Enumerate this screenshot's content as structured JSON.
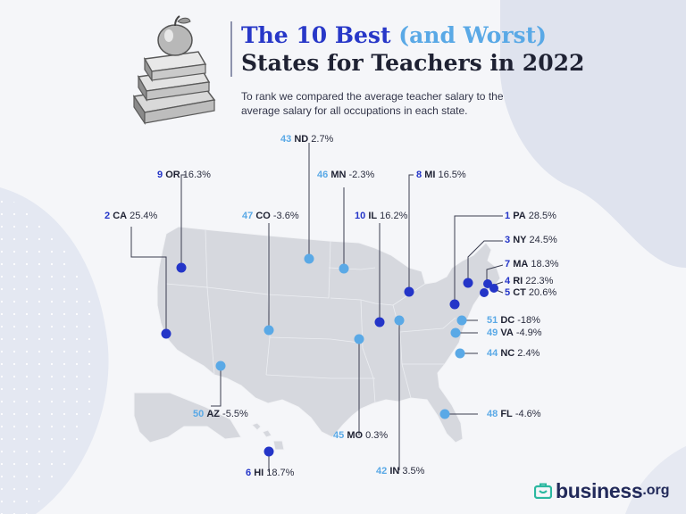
{
  "header": {
    "title_part1": "The 10 Best ",
    "title_part2": "(and Worst)",
    "title_line2": "States for Teachers in 2022",
    "subtitle": "To rank we compared the average teacher salary to the average salary for all occupations in each state."
  },
  "legend_colors": {
    "best": "#2435c8",
    "worst": "#5aa9e6"
  },
  "states": [
    {
      "id": "pa",
      "rank": "1",
      "abbr": "PA",
      "value": "28.5%",
      "group": "best"
    },
    {
      "id": "ca",
      "rank": "2",
      "abbr": "CA",
      "value": "25.4%",
      "group": "best"
    },
    {
      "id": "ny",
      "rank": "3",
      "abbr": "NY",
      "value": "24.5%",
      "group": "best"
    },
    {
      "id": "ri",
      "rank": "4",
      "abbr": "RI",
      "value": "22.3%",
      "group": "best"
    },
    {
      "id": "ct",
      "rank": "5",
      "abbr": "CT",
      "value": "20.6%",
      "group": "best"
    },
    {
      "id": "hi",
      "rank": "6",
      "abbr": "HI",
      "value": "18.7%",
      "group": "best"
    },
    {
      "id": "ma",
      "rank": "7",
      "abbr": "MA",
      "value": "18.3%",
      "group": "best"
    },
    {
      "id": "mi",
      "rank": "8",
      "abbr": "MI",
      "value": "16.5%",
      "group": "best"
    },
    {
      "id": "or",
      "rank": "9",
      "abbr": "OR",
      "value": "16.3%",
      "group": "best"
    },
    {
      "id": "il",
      "rank": "10",
      "abbr": "IL",
      "value": "16.2%",
      "group": "best"
    },
    {
      "id": "in",
      "rank": "42",
      "abbr": "IN",
      "value": "3.5%",
      "group": "worst"
    },
    {
      "id": "nd",
      "rank": "43",
      "abbr": "ND",
      "value": "2.7%",
      "group": "worst"
    },
    {
      "id": "nc",
      "rank": "44",
      "abbr": "NC",
      "value": "2.4%",
      "group": "worst"
    },
    {
      "id": "mo",
      "rank": "45",
      "abbr": "MO",
      "value": "0.3%",
      "group": "worst"
    },
    {
      "id": "mn",
      "rank": "46",
      "abbr": "MN",
      "value": "-2.3%",
      "group": "worst"
    },
    {
      "id": "co",
      "rank": "47",
      "abbr": "CO",
      "value": "-3.6%",
      "group": "worst"
    },
    {
      "id": "fl",
      "rank": "48",
      "abbr": "FL",
      "value": "-4.6%",
      "group": "worst"
    },
    {
      "id": "va",
      "rank": "49",
      "abbr": "VA",
      "value": "-4.9%",
      "group": "worst"
    },
    {
      "id": "az",
      "rank": "50",
      "abbr": "AZ",
      "value": "-5.5%",
      "group": "worst"
    },
    {
      "id": "dc",
      "rank": "51",
      "abbr": "DC",
      "value": "-18%",
      "group": "worst"
    }
  ],
  "logo": {
    "name": "business",
    "tld": ".org",
    "color": "#222a5a",
    "icon_color": "#2bb8a0"
  }
}
